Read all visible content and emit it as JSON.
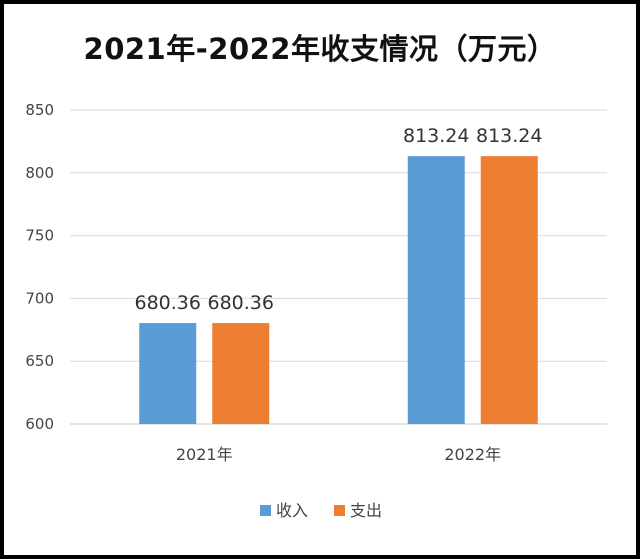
{
  "chart_data": {
    "type": "bar",
    "title": "2021年-2022年收支情况（万元）",
    "categories": [
      "2021年",
      "2022年"
    ],
    "series": [
      {
        "name": "收入",
        "values": [
          680.36,
          813.24
        ]
      },
      {
        "name": "支出",
        "values": [
          680.36,
          813.24
        ]
      }
    ],
    "data_labels": [
      [
        "680.36",
        "813.24"
      ],
      [
        "680.36",
        "813.24"
      ]
    ],
    "ylim": [
      600,
      850
    ],
    "yticks": [
      "600",
      "650",
      "700",
      "750",
      "800",
      "850"
    ],
    "grid": true,
    "legend": "bottom",
    "colors": [
      "#5b9bd5",
      "#ed7d31"
    ]
  }
}
